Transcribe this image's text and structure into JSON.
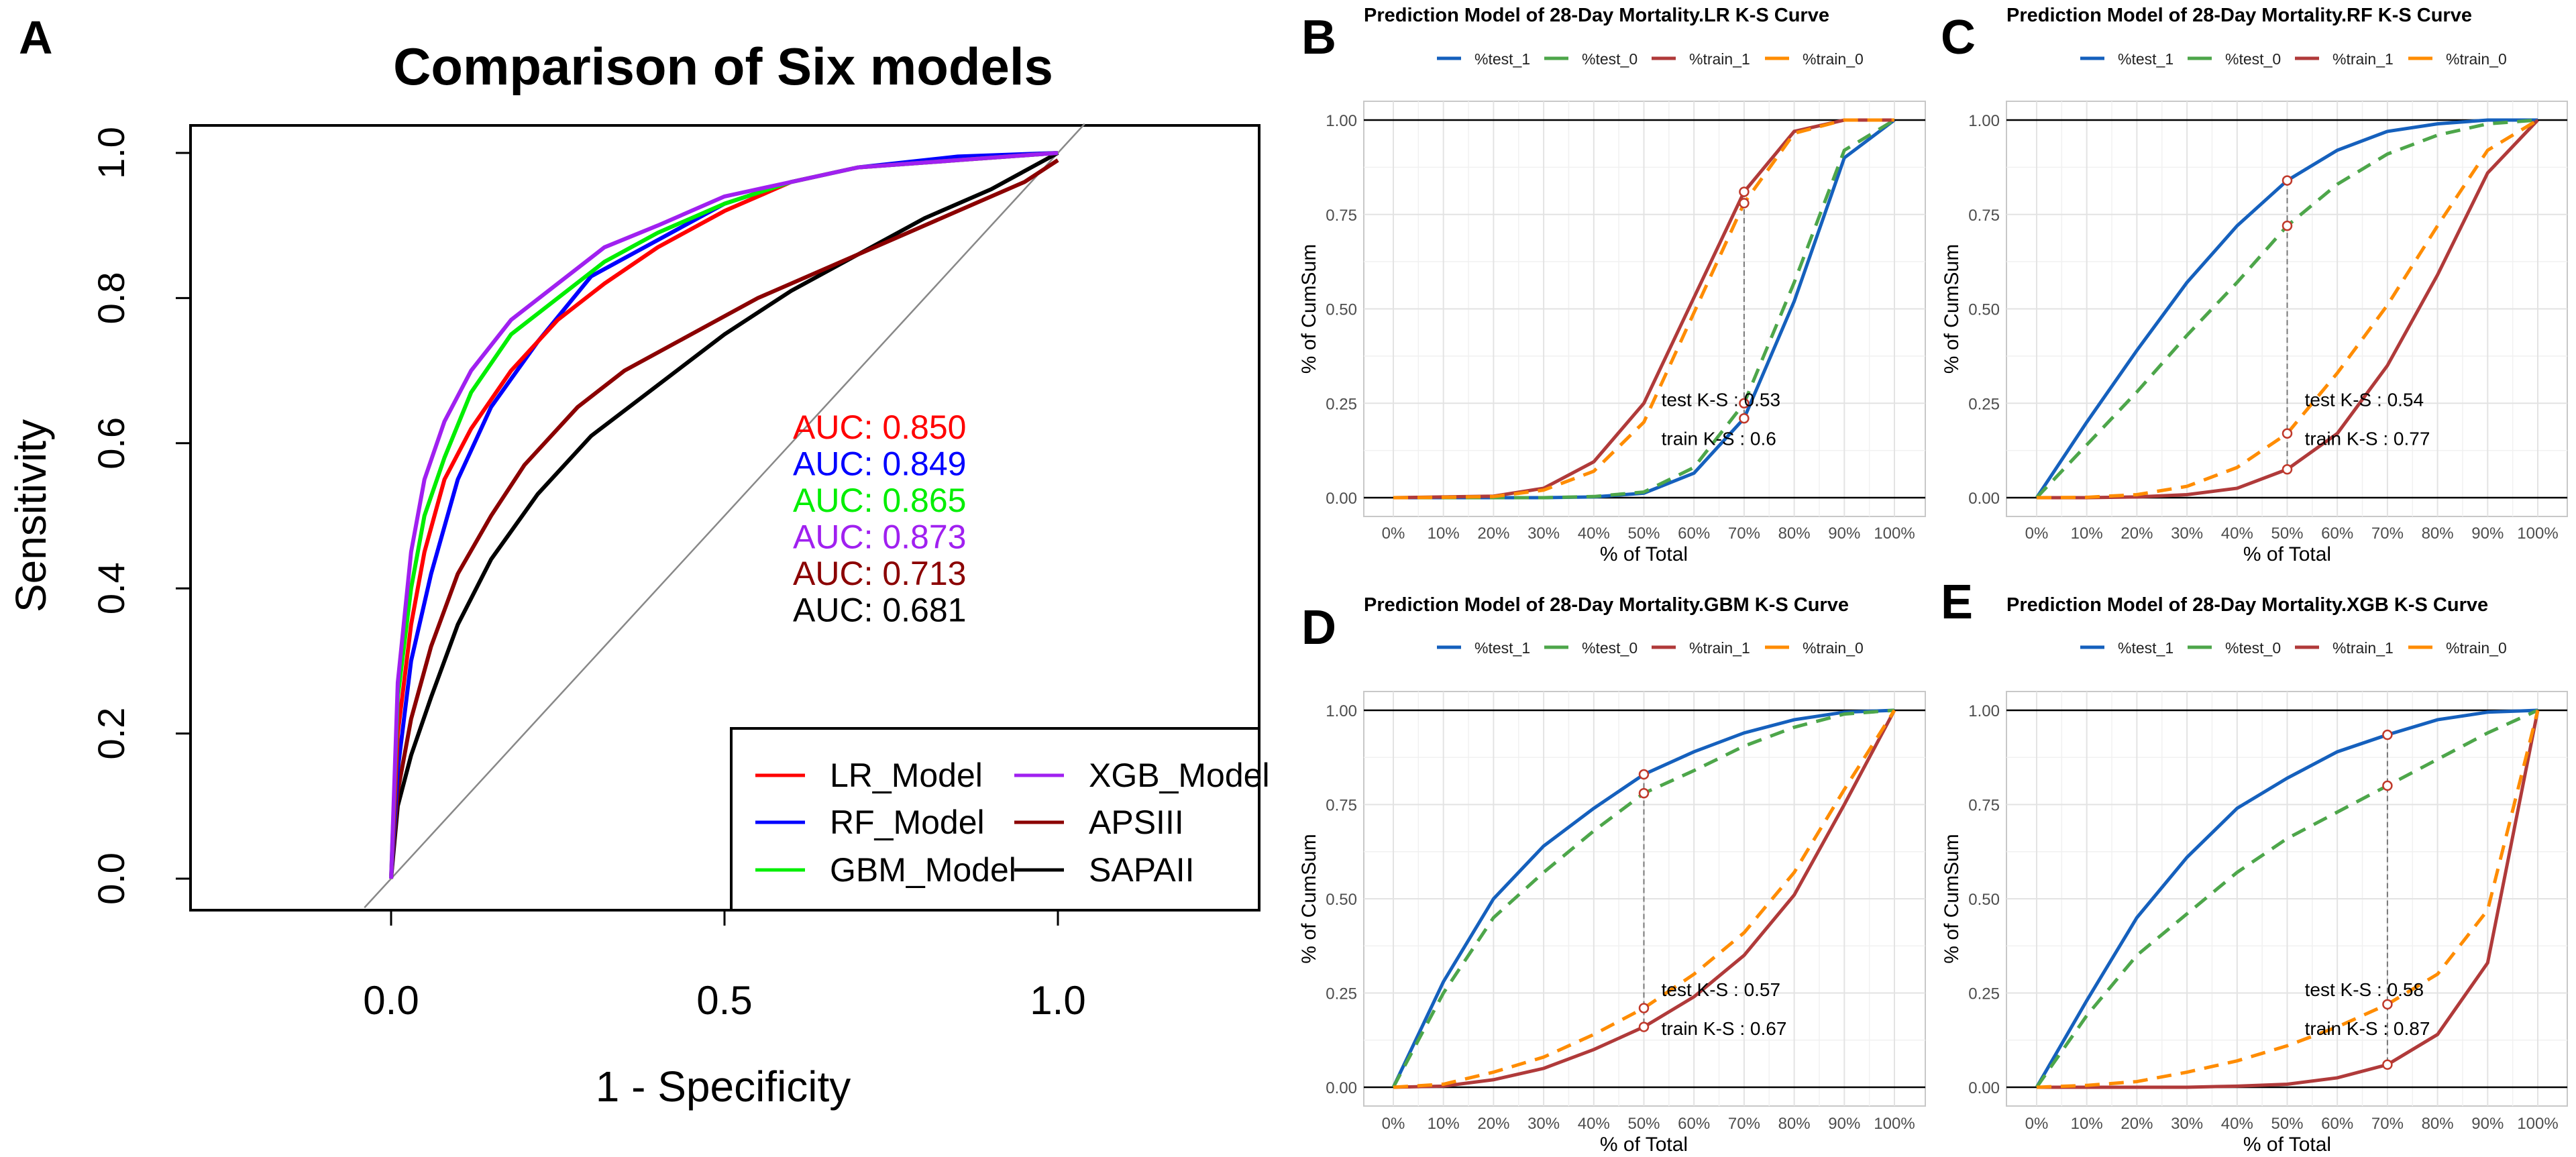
{
  "figure_labels": [
    "A",
    "B",
    "C",
    "D",
    "E"
  ],
  "chart_data": [
    {
      "panel": "A",
      "type": "line",
      "title": "Comparison of Six models",
      "xlabel": "1 - Specificity",
      "ylabel": "Sensitivity",
      "xlim": [
        -0.3,
        1.3
      ],
      "ylim": [
        -0.04,
        1.04
      ],
      "xticks": [
        {
          "value": 0,
          "label": "0.0"
        },
        {
          "value": 0.5,
          "label": "0.5"
        },
        {
          "value": 1,
          "label": "1.0"
        }
      ],
      "yticks": [
        {
          "value": 0,
          "label": "0.0"
        },
        {
          "value": 0.2,
          "label": "0.2"
        },
        {
          "value": 0.4,
          "label": "0.4"
        },
        {
          "value": 0.6,
          "label": "0.6"
        },
        {
          "value": 0.8,
          "label": "0.8"
        },
        {
          "value": 1,
          "label": "1.0"
        }
      ],
      "grid": false,
      "reference_line": "diagonal",
      "legend": "bottom-right",
      "series": [
        {
          "name": "LR_Model",
          "color": "#ff0000",
          "auc": "AUC: 0.850",
          "points": [
            [
              0,
              0
            ],
            [
              0.01,
              0.2
            ],
            [
              0.03,
              0.35
            ],
            [
              0.05,
              0.45
            ],
            [
              0.08,
              0.55
            ],
            [
              0.12,
              0.62
            ],
            [
              0.18,
              0.7
            ],
            [
              0.25,
              0.77
            ],
            [
              0.32,
              0.82
            ],
            [
              0.4,
              0.87
            ],
            [
              0.5,
              0.92
            ],
            [
              0.6,
              0.96
            ],
            [
              0.7,
              0.98
            ],
            [
              0.85,
              0.99
            ],
            [
              1,
              1
            ]
          ]
        },
        {
          "name": "RF_Model",
          "color": "#0000ff",
          "auc": "AUC: 0.849",
          "points": [
            [
              0,
              0
            ],
            [
              0.01,
              0.15
            ],
            [
              0.03,
              0.3
            ],
            [
              0.06,
              0.42
            ],
            [
              0.1,
              0.55
            ],
            [
              0.15,
              0.65
            ],
            [
              0.22,
              0.74
            ],
            [
              0.3,
              0.83
            ],
            [
              0.4,
              0.88
            ],
            [
              0.5,
              0.93
            ],
            [
              0.6,
              0.96
            ],
            [
              0.7,
              0.98
            ],
            [
              0.85,
              0.995
            ],
            [
              1,
              1
            ]
          ]
        },
        {
          "name": "GBM_Model",
          "color": "#00ee00",
          "auc": "AUC: 0.865",
          "points": [
            [
              0,
              0
            ],
            [
              0.01,
              0.25
            ],
            [
              0.03,
              0.4
            ],
            [
              0.05,
              0.5
            ],
            [
              0.08,
              0.58
            ],
            [
              0.12,
              0.67
            ],
            [
              0.18,
              0.75
            ],
            [
              0.25,
              0.8
            ],
            [
              0.32,
              0.85
            ],
            [
              0.4,
              0.89
            ],
            [
              0.5,
              0.93
            ],
            [
              0.6,
              0.96
            ],
            [
              0.7,
              0.98
            ],
            [
              0.85,
              0.99
            ],
            [
              1,
              1
            ]
          ]
        },
        {
          "name": "XGB_Model",
          "color": "#a020f0",
          "auc": "AUC: 0.873",
          "points": [
            [
              0,
              0
            ],
            [
              0.01,
              0.27
            ],
            [
              0.03,
              0.45
            ],
            [
              0.05,
              0.55
            ],
            [
              0.08,
              0.63
            ],
            [
              0.12,
              0.7
            ],
            [
              0.18,
              0.77
            ],
            [
              0.25,
              0.82
            ],
            [
              0.32,
              0.87
            ],
            [
              0.4,
              0.9
            ],
            [
              0.5,
              0.94
            ],
            [
              0.6,
              0.96
            ],
            [
              0.7,
              0.98
            ],
            [
              0.85,
              0.99
            ],
            [
              1,
              1
            ]
          ]
        },
        {
          "name": "APSIII",
          "color": "#8b0000",
          "auc": "AUC: 0.713",
          "points": [
            [
              0,
              0
            ],
            [
              0.01,
              0.12
            ],
            [
              0.03,
              0.22
            ],
            [
              0.06,
              0.32
            ],
            [
              0.1,
              0.42
            ],
            [
              0.15,
              0.5
            ],
            [
              0.2,
              0.57
            ],
            [
              0.28,
              0.65
            ],
            [
              0.35,
              0.7
            ],
            [
              0.45,
              0.75
            ],
            [
              0.55,
              0.8
            ],
            [
              0.65,
              0.84
            ],
            [
              0.75,
              0.88
            ],
            [
              0.85,
              0.92
            ],
            [
              0.95,
              0.96
            ],
            [
              1,
              0.99
            ]
          ]
        },
        {
          "name": "SAPAII",
          "color": "#000000",
          "auc": "AUC: 0.681",
          "points": [
            [
              0,
              0
            ],
            [
              0.01,
              0.1
            ],
            [
              0.03,
              0.17
            ],
            [
              0.06,
              0.25
            ],
            [
              0.1,
              0.35
            ],
            [
              0.15,
              0.44
            ],
            [
              0.22,
              0.53
            ],
            [
              0.3,
              0.61
            ],
            [
              0.4,
              0.68
            ],
            [
              0.5,
              0.75
            ],
            [
              0.6,
              0.81
            ],
            [
              0.7,
              0.86
            ],
            [
              0.8,
              0.91
            ],
            [
              0.9,
              0.95
            ],
            [
              1,
              1
            ]
          ]
        }
      ]
    },
    {
      "panel": "B",
      "type": "line",
      "title": "Prediction Model of 28-Day Mortality.LR K-S Curve",
      "xlabel": "% of Total",
      "ylabel": "% of CumSum",
      "x": [
        0,
        10,
        20,
        30,
        40,
        50,
        60,
        70,
        80,
        90,
        100
      ],
      "xtick_labels": [
        "0%",
        "10%",
        "20%",
        "30%",
        "40%",
        "50%",
        "60%",
        "70%",
        "80%",
        "90%",
        "100%"
      ],
      "ylim": [
        0,
        1
      ],
      "ytick_labels": [
        "0.00",
        "0.25",
        "0.50",
        "0.75",
        "1.00"
      ],
      "grid": true,
      "legend": "top",
      "series": [
        {
          "name": "%test_1",
          "color": "#1560bd",
          "dashed": false,
          "values": [
            0,
            0,
            0,
            0,
            0.002,
            0.012,
            0.065,
            0.21,
            0.52,
            0.9,
            1
          ]
        },
        {
          "name": "%test_0",
          "color": "#4da64a",
          "dashed": true,
          "values": [
            0,
            0,
            0,
            0,
            0.003,
            0.015,
            0.08,
            0.25,
            0.57,
            0.92,
            1
          ]
        },
        {
          "name": "%train_1",
          "color": "#b03a3a",
          "dashed": false,
          "values": [
            0,
            0.002,
            0.004,
            0.025,
            0.095,
            0.25,
            0.53,
            0.81,
            0.97,
            1,
            1
          ]
        },
        {
          "name": "%train_0",
          "color": "#ff8c00",
          "dashed": true,
          "values": [
            0,
            0.001,
            0.003,
            0.02,
            0.07,
            0.2,
            0.49,
            0.78,
            0.965,
            1,
            1
          ]
        }
      ],
      "ks": {
        "x": 70,
        "test_text": "test K-S :  0.53",
        "train_text": "train K-S :  0.6"
      }
    },
    {
      "panel": "C",
      "type": "line",
      "title": "Prediction Model of 28-Day Mortality.RF K-S Curve",
      "xlabel": "% of Total",
      "ylabel": "% of CumSum",
      "x": [
        0,
        10,
        20,
        30,
        40,
        50,
        60,
        70,
        80,
        90,
        100
      ],
      "xtick_labels": [
        "0%",
        "10%",
        "20%",
        "30%",
        "40%",
        "50%",
        "60%",
        "70%",
        "80%",
        "90%",
        "100%"
      ],
      "ylim": [
        0,
        1
      ],
      "ytick_labels": [
        "0.00",
        "0.25",
        "0.50",
        "0.75",
        "1.00"
      ],
      "grid": true,
      "legend": "top",
      "series": [
        {
          "name": "%test_1",
          "color": "#1560bd",
          "dashed": false,
          "values": [
            0,
            0.2,
            0.39,
            0.57,
            0.72,
            0.84,
            0.92,
            0.97,
            0.99,
            1,
            1
          ]
        },
        {
          "name": "%test_0",
          "color": "#4da64a",
          "dashed": true,
          "values": [
            0,
            0.14,
            0.28,
            0.43,
            0.57,
            0.72,
            0.83,
            0.91,
            0.96,
            0.99,
            1
          ]
        },
        {
          "name": "%train_1",
          "color": "#b03a3a",
          "dashed": false,
          "values": [
            0,
            0,
            0.002,
            0.008,
            0.025,
            0.075,
            0.17,
            0.35,
            0.59,
            0.86,
            1
          ]
        },
        {
          "name": "%train_0",
          "color": "#ff8c00",
          "dashed": true,
          "values": [
            0,
            0.001,
            0.008,
            0.03,
            0.08,
            0.17,
            0.33,
            0.51,
            0.72,
            0.92,
            1
          ]
        }
      ],
      "ks": {
        "x": 50,
        "test_text": "test K-S :  0.54",
        "train_text": "train K-S :  0.77"
      }
    },
    {
      "panel": "D",
      "type": "line",
      "title": "Prediction Model of 28-Day Mortality.GBM K-S Curve",
      "xlabel": "% of Total",
      "ylabel": "% of CumSum",
      "x": [
        0,
        10,
        20,
        30,
        40,
        50,
        60,
        70,
        80,
        90,
        100
      ],
      "xtick_labels": [
        "0%",
        "10%",
        "20%",
        "30%",
        "40%",
        "50%",
        "60%",
        "70%",
        "80%",
        "90%",
        "100%"
      ],
      "ylim": [
        0,
        1
      ],
      "ytick_labels": [
        "0.00",
        "0.25",
        "0.50",
        "0.75",
        "1.00"
      ],
      "grid": true,
      "legend": "top",
      "series": [
        {
          "name": "%test_1",
          "color": "#1560bd",
          "dashed": false,
          "values": [
            0,
            0.28,
            0.5,
            0.64,
            0.74,
            0.83,
            0.89,
            0.94,
            0.975,
            0.995,
            1
          ]
        },
        {
          "name": "%test_0",
          "color": "#4da64a",
          "dashed": true,
          "values": [
            0,
            0.25,
            0.45,
            0.57,
            0.68,
            0.78,
            0.84,
            0.905,
            0.955,
            0.99,
            1
          ]
        },
        {
          "name": "%train_1",
          "color": "#b03a3a",
          "dashed": false,
          "values": [
            0,
            0.003,
            0.02,
            0.05,
            0.1,
            0.16,
            0.24,
            0.35,
            0.51,
            0.75,
            1
          ]
        },
        {
          "name": "%train_0",
          "color": "#ff8c00",
          "dashed": true,
          "values": [
            0,
            0.008,
            0.04,
            0.08,
            0.14,
            0.21,
            0.3,
            0.41,
            0.57,
            0.79,
            1
          ]
        }
      ],
      "ks": {
        "x": 50,
        "test_text": "test K-S :  0.57",
        "train_text": "train K-S :  0.67"
      }
    },
    {
      "panel": "E",
      "type": "line",
      "title": "Prediction Model of 28-Day Mortality.XGB K-S Curve",
      "xlabel": "% of Total",
      "ylabel": "% of CumSum",
      "x": [
        0,
        10,
        20,
        30,
        40,
        50,
        60,
        70,
        80,
        90,
        100
      ],
      "xtick_labels": [
        "0%",
        "10%",
        "20%",
        "30%",
        "40%",
        "50%",
        "60%",
        "70%",
        "80%",
        "90%",
        "100%"
      ],
      "ylim": [
        0,
        1
      ],
      "ytick_labels": [
        "0.00",
        "0.25",
        "0.50",
        "0.75",
        "1.00"
      ],
      "grid": true,
      "legend": "top",
      "series": [
        {
          "name": "%test_1",
          "color": "#1560bd",
          "dashed": false,
          "values": [
            0,
            0.23,
            0.45,
            0.61,
            0.74,
            0.82,
            0.89,
            0.935,
            0.975,
            0.995,
            1
          ]
        },
        {
          "name": "%test_0",
          "color": "#4da64a",
          "dashed": true,
          "values": [
            0,
            0.19,
            0.35,
            0.46,
            0.57,
            0.66,
            0.73,
            0.8,
            0.87,
            0.94,
            1
          ]
        },
        {
          "name": "%train_1",
          "color": "#b03a3a",
          "dashed": false,
          "values": [
            0,
            0,
            0,
            0,
            0.003,
            0.008,
            0.025,
            0.06,
            0.14,
            0.33,
            1
          ]
        },
        {
          "name": "%train_0",
          "color": "#ff8c00",
          "dashed": true,
          "values": [
            0,
            0.005,
            0.015,
            0.04,
            0.07,
            0.11,
            0.16,
            0.22,
            0.3,
            0.47,
            1
          ]
        }
      ],
      "ks": {
        "x": 70,
        "test_text": "test K-S :  0.58",
        "train_text": "train K-S :  0.87"
      }
    }
  ]
}
